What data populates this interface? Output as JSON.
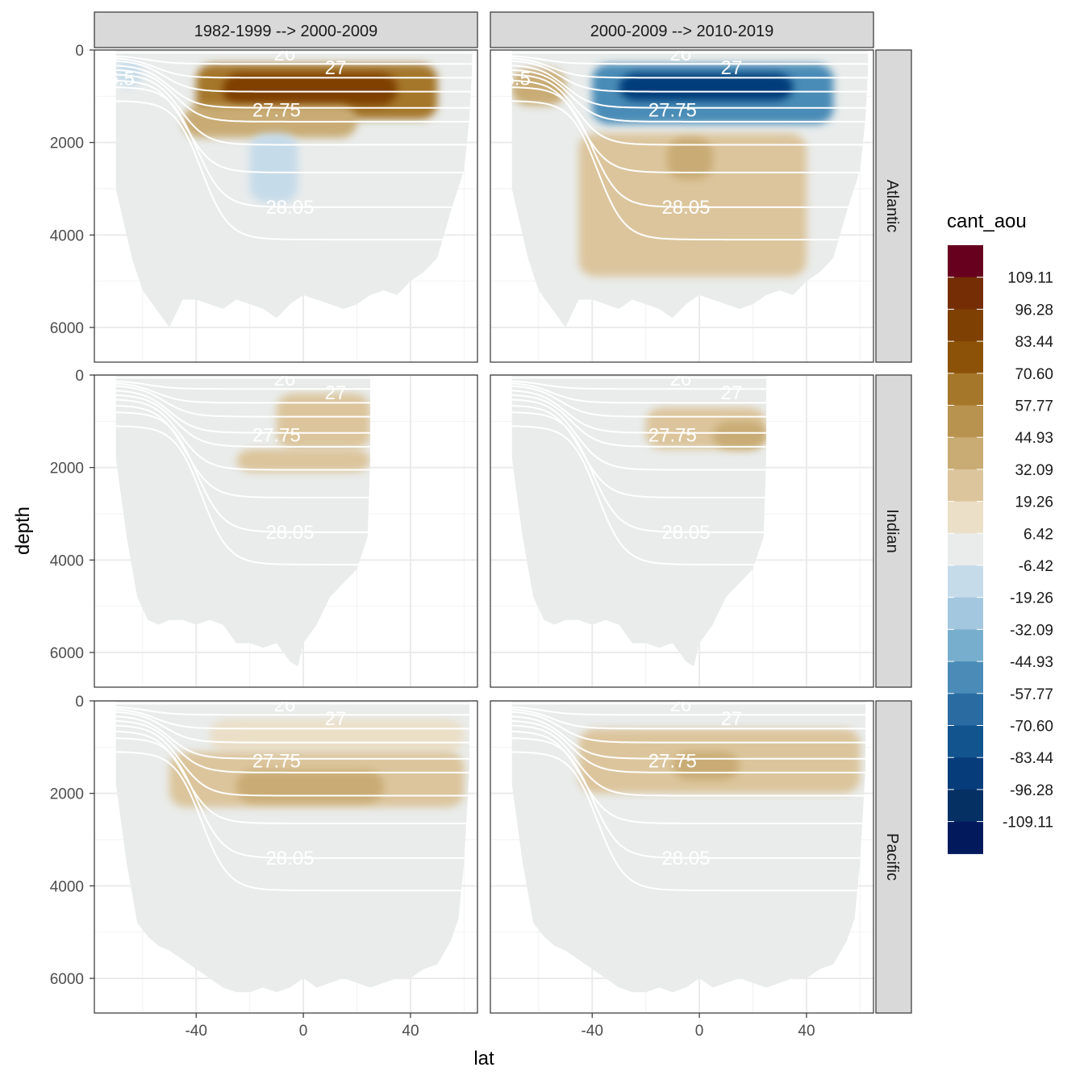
{
  "chart_data": {
    "type": "heatmap",
    "subtype": "faceted filled-contour depth sections with isopycnal contour lines",
    "xlabel": "lat",
    "ylabel": "depth",
    "x_ticks": [
      -40,
      0,
      40
    ],
    "y_ticks": [
      0,
      2000,
      4000,
      6000
    ],
    "xlim": [
      -78,
      65
    ],
    "ylim": [
      6750,
      0
    ],
    "y_reversed": true,
    "grid": true,
    "facet_columns": [
      "1982-1999 --> 2000-2009",
      "2000-2009 --> 2010-2019"
    ],
    "facet_rows": [
      "Atlantic",
      "Indian",
      "Pacific"
    ],
    "legend": {
      "title": "cant_aou",
      "position": "right",
      "labels": [
        "109.11",
        "96.28",
        "83.44",
        "70.60",
        "57.77",
        "44.93",
        "32.09",
        "19.26",
        "6.42",
        "-6.42",
        "-19.26",
        "-32.09",
        "-44.93",
        "-57.77",
        "-70.60",
        "-83.44",
        "-96.28",
        "-109.11"
      ],
      "colors": [
        "#67001f",
        "#742d05",
        "#7f4004",
        "#8c5208",
        "#a5772b",
        "#b8934f",
        "#c9ac74",
        "#dcc59c",
        "#ebdfc8",
        "#e9eceb",
        "#c6dbea",
        "#a3c7de",
        "#78aecd",
        "#4a8cb7",
        "#2a6ca2",
        "#11548e",
        "#063c7a",
        "#053064",
        "#021a5c"
      ]
    },
    "contour_labels": [
      "26",
      "27",
      "27.75",
      "28.05",
      "26.5"
    ],
    "colors": {
      "neutral": "#e9eceb",
      "contour_line": "#ffffff",
      "strip_bg": "#d9d9d9",
      "panel_border": "#333333",
      "grid": "#ebebeb"
    },
    "panels": [
      {
        "column": 0,
        "row": 0,
        "basin": "Atlantic",
        "labels": [
          "26",
          "27",
          "27.75",
          "28.05",
          "26.5"
        ],
        "anomalies": [
          {
            "lat": [
              -40,
              50
            ],
            "depth": [
              300,
              1500
            ],
            "value": 57.77
          },
          {
            "lat": [
              -30,
              35
            ],
            "depth": [
              500,
              1200
            ],
            "value": 83.44
          },
          {
            "lat": [
              -45,
              20
            ],
            "depth": [
              1200,
              1900
            ],
            "value": 32.09
          },
          {
            "lat": [
              -20,
              -2
            ],
            "depth": [
              1800,
              3300
            ],
            "value": -19.26
          },
          {
            "lat": [
              -70,
              -60
            ],
            "depth": [
              200,
              800
            ],
            "value": -19.26
          }
        ]
      },
      {
        "column": 1,
        "row": 0,
        "basin": "Atlantic",
        "labels": [
          "26",
          "27",
          "27.75",
          "28.05",
          "26.5"
        ],
        "anomalies": [
          {
            "lat": [
              -40,
              50
            ],
            "depth": [
              300,
              1600
            ],
            "value": -57.77
          },
          {
            "lat": [
              -30,
              35
            ],
            "depth": [
              500,
              1100
            ],
            "value": -96.28
          },
          {
            "lat": [
              -70,
              -50
            ],
            "depth": [
              400,
              1200
            ],
            "value": 32.09
          },
          {
            "lat": [
              -45,
              40
            ],
            "depth": [
              1800,
              4900
            ],
            "value": 19.26
          },
          {
            "lat": [
              -12,
              5
            ],
            "depth": [
              1900,
              2800
            ],
            "value": 32.09
          }
        ]
      },
      {
        "column": 0,
        "row": 1,
        "basin": "Indian",
        "labels": [
          "26",
          "27",
          "27.75",
          "28.05"
        ],
        "anomalies": [
          {
            "lat": [
              -10,
              25
            ],
            "depth": [
              400,
              1600
            ],
            "value": 19.26
          },
          {
            "lat": [
              -25,
              25
            ],
            "depth": [
              1600,
              2100
            ],
            "value": 19.26
          }
        ]
      },
      {
        "column": 1,
        "row": 1,
        "basin": "Indian",
        "labels": [
          "26",
          "27",
          "27.75",
          "28.05"
        ],
        "anomalies": [
          {
            "lat": [
              -20,
              25
            ],
            "depth": [
              700,
              1600
            ],
            "value": 19.26
          },
          {
            "lat": [
              5,
              25
            ],
            "depth": [
              1000,
              1600
            ],
            "value": 32.09
          }
        ]
      },
      {
        "column": 0,
        "row": 2,
        "basin": "Pacific",
        "labels": [
          "26",
          "27",
          "27.75",
          "28.05"
        ],
        "anomalies": [
          {
            "lat": [
              -35,
              60
            ],
            "depth": [
              400,
              1100
            ],
            "value": 6.42
          },
          {
            "lat": [
              -50,
              60
            ],
            "depth": [
              1100,
              2300
            ],
            "value": 19.26
          },
          {
            "lat": [
              -25,
              30
            ],
            "depth": [
              1500,
              2200
            ],
            "value": 32.09
          }
        ]
      },
      {
        "column": 1,
        "row": 2,
        "basin": "Pacific",
        "labels": [
          "26",
          "27",
          "27.75",
          "28.05"
        ],
        "anomalies": [
          {
            "lat": [
              -45,
              60
            ],
            "depth": [
              600,
              2000
            ],
            "value": 19.26
          },
          {
            "lat": [
              -10,
              15
            ],
            "depth": [
              1100,
              1700
            ],
            "value": 32.09
          }
        ]
      }
    ]
  }
}
